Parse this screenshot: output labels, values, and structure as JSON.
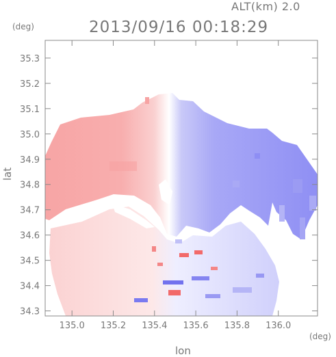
{
  "header": {
    "altitude_label": "ALT(km) 2.0",
    "timestamp": "2013/09/16 00:18:29"
  },
  "axes": {
    "y_unit": "(deg)",
    "x_unit": "(deg)",
    "y_name": "lat",
    "x_name": "lon"
  },
  "chart_data": {
    "type": "heatmap",
    "title": "2013/09/16 00:18:29",
    "subtitle": "ALT(km) 2.0",
    "xlabel": "lon",
    "ylabel": "lat",
    "xlim": [
      134.87,
      136.19
    ],
    "ylim": [
      34.28,
      35.37
    ],
    "x_ticks": [
      "135.0",
      "135.2",
      "135.4",
      "135.6",
      "135.8",
      "136.0"
    ],
    "x_tick_values": [
      135.0,
      135.2,
      135.4,
      135.6,
      135.8,
      136.0
    ],
    "y_ticks": [
      "34.3",
      "34.4",
      "34.5",
      "34.6",
      "34.7",
      "34.8",
      "34.9",
      "35.0",
      "35.1",
      "35.2",
      "35.3"
    ],
    "y_tick_values": [
      34.3,
      34.4,
      34.5,
      34.6,
      34.7,
      34.8,
      34.9,
      35.0,
      35.1,
      35.2,
      35.3
    ],
    "grid": false,
    "colors": {
      "approaching": "#7f7ff5",
      "receding": "#f58f8f",
      "zero": "#ffffff",
      "axis": "#888888"
    }
  }
}
